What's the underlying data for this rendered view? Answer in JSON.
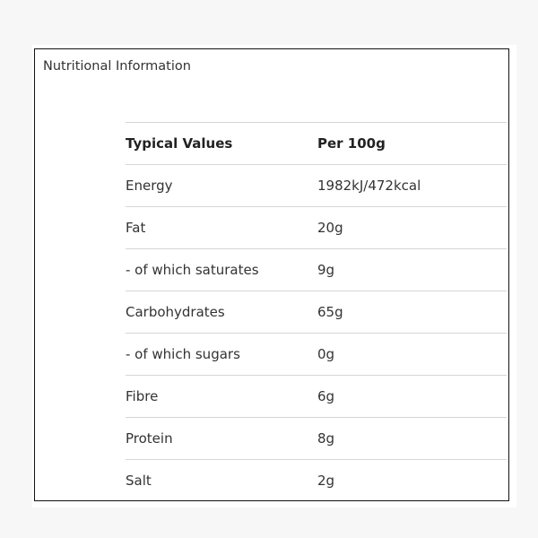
{
  "title": "Nutritional Information",
  "table": {
    "headers": [
      "Typical Values",
      "Per 100g"
    ],
    "rows": [
      [
        "Energy",
        "1982kJ/472kcal"
      ],
      [
        "Fat",
        "20g"
      ],
      [
        "- of which saturates",
        "9g"
      ],
      [
        "Carbohydrates",
        "65g"
      ],
      [
        "- of which sugars",
        "0g"
      ],
      [
        "Fibre",
        "6g"
      ],
      [
        "Protein",
        "8g"
      ],
      [
        "Salt",
        "2g"
      ]
    ]
  }
}
